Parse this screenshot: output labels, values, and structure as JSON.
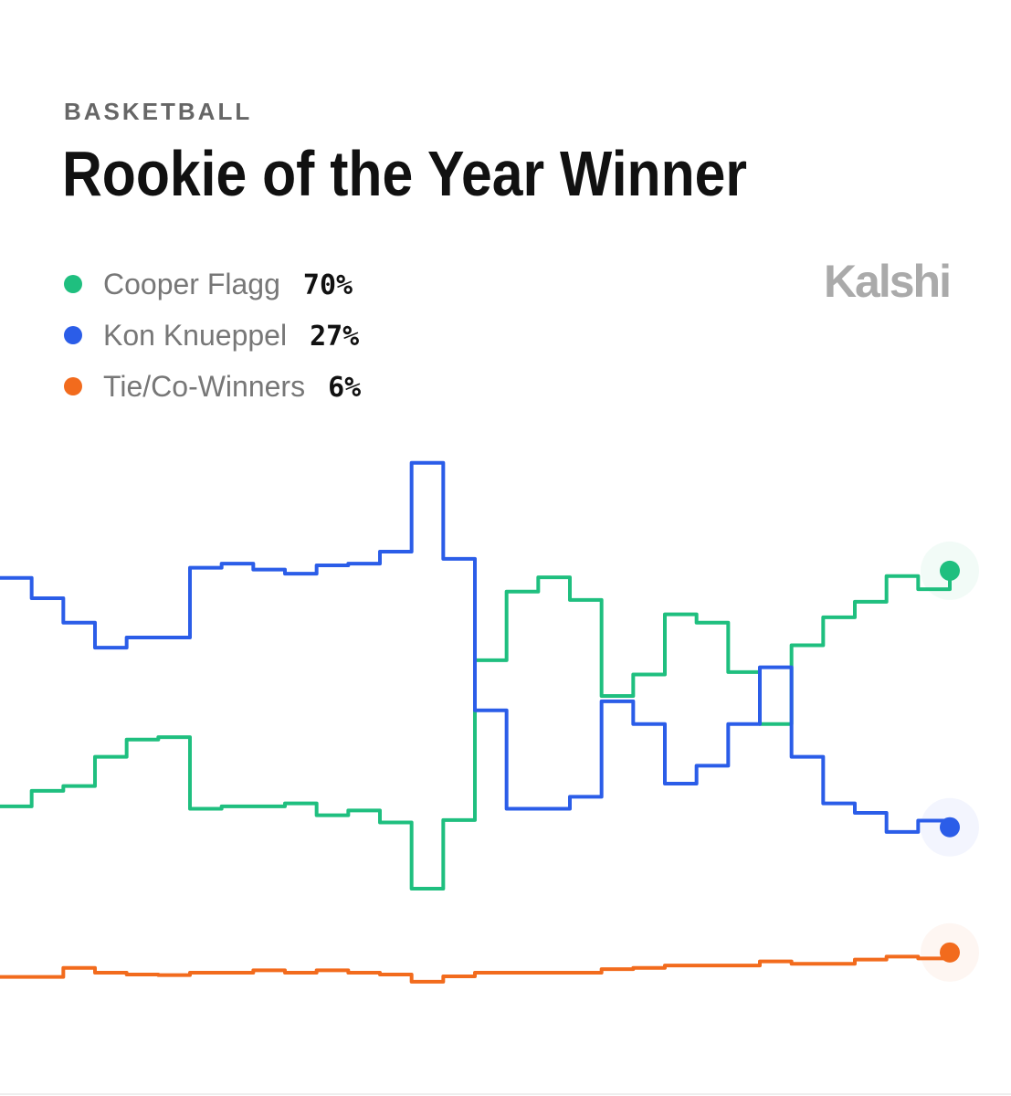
{
  "chart_data": {
    "type": "line",
    "step": true,
    "category": "BASKETBALL",
    "title": "Rookie of the Year Winner",
    "brand": "Kalshi",
    "ylim": [
      0,
      100
    ],
    "series": [
      {
        "name": "Cooper Flagg",
        "color": "#1fbf7f",
        "current": 70,
        "current_label": "70%",
        "values": [
          30.5,
          33.1,
          33.9,
          38.8,
          41.7,
          42.1,
          30.1,
          30.5,
          30.5,
          31.0,
          29.0,
          29.8,
          27.8,
          16.7,
          28.2,
          55.0,
          66.5,
          68.9,
          65.1,
          49.0,
          52.6,
          62.7,
          61.3,
          53.0,
          44.3,
          57.5,
          62.2,
          64.8,
          69.1,
          66.9,
          70
        ]
      },
      {
        "name": "Kon Knueppel",
        "color": "#2b5de8",
        "current": 27,
        "current_label": "27%",
        "values": [
          68.8,
          65.4,
          61.3,
          57.1,
          58.8,
          58.8,
          70.5,
          71.2,
          70.2,
          69.5,
          70.9,
          71.2,
          73.2,
          88.1,
          72.0,
          46.6,
          30.1,
          30.1,
          32.1,
          48.1,
          44.3,
          34.3,
          37.3,
          44.3,
          53.8,
          38.8,
          31.0,
          29.4,
          26.2,
          28.1,
          27
        ]
      },
      {
        "name": "Tie/Co-Winners",
        "color": "#f26b1d",
        "current": 6,
        "current_label": "6%",
        "values": [
          1.9,
          1.9,
          3.4,
          2.6,
          2.3,
          2.2,
          2.6,
          2.6,
          3.0,
          2.6,
          3.0,
          2.6,
          2.3,
          1.1,
          2.0,
          2.6,
          2.6,
          2.6,
          2.6,
          3.2,
          3.4,
          3.8,
          3.8,
          3.8,
          4.5,
          4.1,
          4.1,
          4.8,
          5.3,
          5.0,
          6
        ]
      }
    ]
  }
}
